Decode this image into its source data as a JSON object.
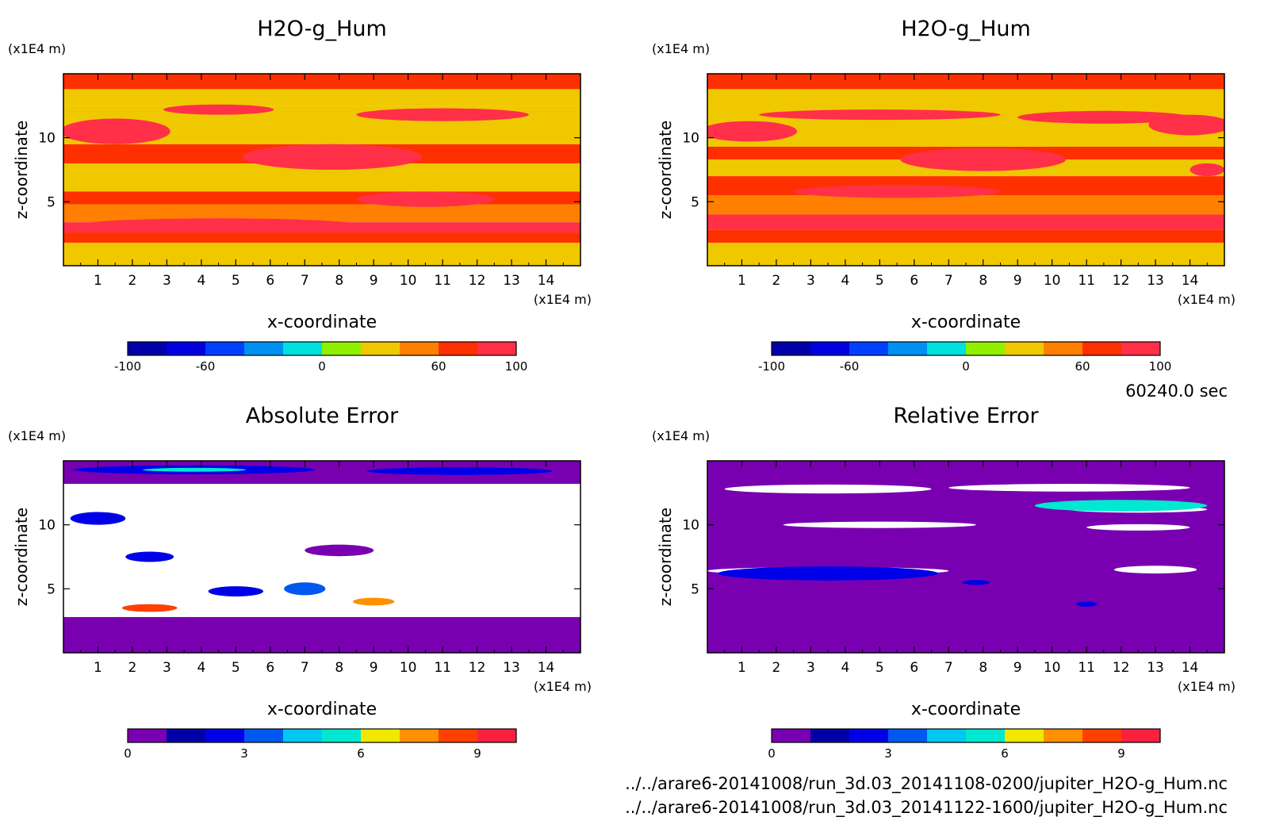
{
  "time_label": "60240.0 sec",
  "files": [
    "../../arare6-20141008/run_3d.03_20141108-0200/jupiter_H2O-g_Hum.nc",
    "../../arare6-20141008/run_3d.03_20141122-1600/jupiter_H2O-g_Hum.nc"
  ],
  "chart_data": [
    {
      "type": "heatmap",
      "title": "H2O-g_Hum",
      "xlabel": "x-coordinate",
      "ylabel": "z-coordinate",
      "x_unit": "(x1E4 m)",
      "y_unit": "(x1E4 m)",
      "x_ticks": [
        1,
        2,
        3,
        4,
        5,
        6,
        7,
        8,
        9,
        10,
        11,
        12,
        13,
        14
      ],
      "y_ticks": [
        5,
        10
      ],
      "xlim": [
        0,
        15
      ],
      "ylim": [
        0,
        15
      ],
      "colorbar": {
        "levels": [
          -100,
          -80,
          -60,
          -40,
          -20,
          0,
          20,
          40,
          60,
          80,
          100
        ],
        "tick_labels": [
          "-100",
          "-60",
          "0",
          "60",
          "100"
        ],
        "tick_values": [
          -100,
          -60,
          0,
          60,
          100
        ],
        "colors": [
          "#0000a8",
          "#0000e0",
          "#0040ff",
          "#0090f0",
          "#00e0e0",
          "#90f000",
          "#f0c800",
          "#ff8000",
          "#ff3000",
          "#ff3048"
        ]
      },
      "bands": [
        {
          "z": [
            0,
            1.8
          ],
          "value": 30
        },
        {
          "z": [
            1.8,
            2.6
          ],
          "value": 70
        },
        {
          "z": [
            2.6,
            3.4
          ],
          "value": 90
        },
        {
          "z": [
            3.4,
            4.8
          ],
          "value": 50
        },
        {
          "z": [
            4.8,
            5.8
          ],
          "value": 70
        },
        {
          "z": [
            5.8,
            8.0
          ],
          "value": 30
        },
        {
          "z": [
            8.0,
            9.5
          ],
          "value": 70
        },
        {
          "z": [
            9.5,
            12.5
          ],
          "value": 30
        },
        {
          "z": [
            12.5,
            13.8
          ],
          "value": 30
        },
        {
          "z": [
            13.8,
            15
          ],
          "value": 70
        }
      ],
      "features": [
        {
          "x": 7.8,
          "z": 8.5,
          "rx": 2.6,
          "rz": 1.0,
          "value": 90
        },
        {
          "x": 7.8,
          "z": 8.7,
          "rx": 0.9,
          "rz": 0.4,
          "value": 100
        },
        {
          "x": 1.5,
          "z": 10.5,
          "rx": 1.6,
          "rz": 1.0,
          "value": 90
        },
        {
          "x": 1.5,
          "z": 10.6,
          "rx": 0.8,
          "rz": 0.5,
          "value": 100
        },
        {
          "x": 4.5,
          "z": 12.2,
          "rx": 1.6,
          "rz": 0.4,
          "value": 90
        },
        {
          "x": 4.5,
          "z": 12.2,
          "rx": 0.9,
          "rz": 0.25,
          "value": 100
        },
        {
          "x": 11.0,
          "z": 11.8,
          "rx": 2.5,
          "rz": 0.5,
          "value": 90
        },
        {
          "x": 10.5,
          "z": 5.2,
          "rx": 2.0,
          "rz": 0.6,
          "value": 90
        },
        {
          "x": 4.5,
          "z": 3.2,
          "rx": 4.0,
          "rz": 0.5,
          "value": 90
        }
      ]
    },
    {
      "type": "heatmap",
      "title": "H2O-g_Hum",
      "xlabel": "x-coordinate",
      "ylabel": "z-coordinate",
      "x_unit": "(x1E4 m)",
      "y_unit": "(x1E4 m)",
      "x_ticks": [
        1,
        2,
        3,
        4,
        5,
        6,
        7,
        8,
        9,
        10,
        11,
        12,
        13,
        14
      ],
      "y_ticks": [
        5,
        10
      ],
      "xlim": [
        0,
        15
      ],
      "ylim": [
        0,
        15
      ],
      "colorbar": {
        "levels": [
          -100,
          -80,
          -60,
          -40,
          -20,
          0,
          20,
          40,
          60,
          80,
          100
        ],
        "tick_labels": [
          "-100",
          "-60",
          "0",
          "60",
          "100"
        ],
        "tick_values": [
          -100,
          -60,
          0,
          60,
          100
        ],
        "colors": [
          "#0000a8",
          "#0000e0",
          "#0040ff",
          "#0090f0",
          "#00e0e0",
          "#90f000",
          "#f0c800",
          "#ff8000",
          "#ff3000",
          "#ff3048"
        ]
      },
      "bands": [
        {
          "z": [
            0,
            1.8
          ],
          "value": 30
        },
        {
          "z": [
            1.8,
            2.8
          ],
          "value": 70
        },
        {
          "z": [
            2.8,
            4.0
          ],
          "value": 90
        },
        {
          "z": [
            4.0,
            5.5
          ],
          "value": 50
        },
        {
          "z": [
            5.5,
            7.0
          ],
          "value": 70
        },
        {
          "z": [
            7.0,
            8.3
          ],
          "value": 30
        },
        {
          "z": [
            8.3,
            9.3
          ],
          "value": 70
        },
        {
          "z": [
            9.3,
            12.3
          ],
          "value": 30
        },
        {
          "z": [
            12.3,
            13.8
          ],
          "value": 30
        },
        {
          "z": [
            13.8,
            15
          ],
          "value": 70
        }
      ],
      "features": [
        {
          "x": 8.0,
          "z": 8.3,
          "rx": 2.4,
          "rz": 0.9,
          "value": 90
        },
        {
          "x": 8.0,
          "z": 8.5,
          "rx": 0.8,
          "rz": 0.35,
          "value": 100
        },
        {
          "x": 1.2,
          "z": 10.5,
          "rx": 1.4,
          "rz": 0.8,
          "value": 90
        },
        {
          "x": 0.6,
          "z": 10.6,
          "rx": 0.6,
          "rz": 0.4,
          "value": 100
        },
        {
          "x": 5.0,
          "z": 11.8,
          "rx": 3.5,
          "rz": 0.4,
          "value": 90
        },
        {
          "x": 11.5,
          "z": 11.6,
          "rx": 2.5,
          "rz": 0.5,
          "value": 90
        },
        {
          "x": 14.0,
          "z": 11.0,
          "rx": 1.2,
          "rz": 0.8,
          "value": 90
        },
        {
          "x": 14.3,
          "z": 11.2,
          "rx": 0.6,
          "rz": 0.4,
          "value": 100
        },
        {
          "x": 5.5,
          "z": 5.8,
          "rx": 3.0,
          "rz": 0.5,
          "value": 90
        },
        {
          "x": 14.5,
          "z": 7.5,
          "rx": 0.5,
          "rz": 0.5,
          "value": 100
        }
      ]
    },
    {
      "type": "heatmap",
      "title": "Absolute Error",
      "xlabel": "x-coordinate",
      "ylabel": "z-coordinate",
      "x_unit": "(x1E4 m)",
      "y_unit": "(x1E4 m)",
      "x_ticks": [
        1,
        2,
        3,
        4,
        5,
        6,
        7,
        8,
        9,
        10,
        11,
        12,
        13,
        14
      ],
      "y_ticks": [
        5,
        10
      ],
      "xlim": [
        0,
        15
      ],
      "ylim": [
        0,
        15
      ],
      "colorbar": {
        "levels": [
          0,
          1,
          2,
          3,
          4,
          5,
          6,
          7,
          8,
          9,
          10
        ],
        "tick_labels": [
          "0",
          "3",
          "6",
          "9"
        ],
        "tick_values": [
          0,
          3,
          6,
          9
        ],
        "colors": [
          "#7800b0",
          "#0000a8",
          "#0000e8",
          "#0058f0",
          "#00c8f0",
          "#00e8d0",
          "#f0e800",
          "#ff9000",
          "#ff4000",
          "#ff2040"
        ]
      },
      "bands": [
        {
          "z": [
            0,
            2.8
          ],
          "value": 0.5
        },
        {
          "z": [
            2.8,
            13.2
          ],
          "value": 11
        },
        {
          "z": [
            13.2,
            15
          ],
          "value": 0.5
        }
      ],
      "features": [
        {
          "x": 3.8,
          "z": 14.3,
          "rx": 3.5,
          "rz": 0.35,
          "value": 2.5
        },
        {
          "x": 3.8,
          "z": 14.3,
          "rx": 1.5,
          "rz": 0.15,
          "value": 5.5
        },
        {
          "x": 11.5,
          "z": 14.2,
          "rx": 2.7,
          "rz": 0.3,
          "value": 2.5
        },
        {
          "x": 8.0,
          "z": 8.0,
          "rx": 1.0,
          "rz": 0.45,
          "value": 0.5
        },
        {
          "x": 2.5,
          "z": 7.5,
          "rx": 0.7,
          "rz": 0.4,
          "value": 2.5
        },
        {
          "x": 5.0,
          "z": 4.8,
          "rx": 0.8,
          "rz": 0.4,
          "value": 2.5
        },
        {
          "x": 7.0,
          "z": 5.0,
          "rx": 0.6,
          "rz": 0.5,
          "value": 3.5
        },
        {
          "x": 1.0,
          "z": 10.5,
          "rx": 0.8,
          "rz": 0.5,
          "value": 2.5
        },
        {
          "x": 2.5,
          "z": 3.5,
          "rx": 0.8,
          "rz": 0.3,
          "value": 8.5
        },
        {
          "x": 9.0,
          "z": 4.0,
          "rx": 0.6,
          "rz": 0.3,
          "value": 7.5
        }
      ]
    },
    {
      "type": "heatmap",
      "title": "Relative Error",
      "xlabel": "x-coordinate",
      "ylabel": "z-coordinate",
      "x_unit": "(x1E4 m)",
      "y_unit": "(x1E4 m)",
      "x_ticks": [
        1,
        2,
        3,
        4,
        5,
        6,
        7,
        8,
        9,
        10,
        11,
        12,
        13,
        14
      ],
      "y_ticks": [
        5,
        10
      ],
      "xlim": [
        0,
        15
      ],
      "ylim": [
        0,
        15
      ],
      "colorbar": {
        "levels": [
          0,
          1,
          2,
          3,
          4,
          5,
          6,
          7,
          8,
          9,
          10
        ],
        "tick_labels": [
          "0",
          "3",
          "6",
          "9"
        ],
        "tick_values": [
          0,
          3,
          6,
          9
        ],
        "colors": [
          "#7800b0",
          "#0000a8",
          "#0000e8",
          "#0058f0",
          "#00c8f0",
          "#00e8d0",
          "#f0e800",
          "#ff9000",
          "#ff4000",
          "#ff2040"
        ]
      },
      "bands": [
        {
          "z": [
            0,
            15
          ],
          "value": 0.5
        }
      ],
      "features": [
        {
          "x": 3.5,
          "z": 12.8,
          "rx": 3.0,
          "rz": 0.35,
          "value": 11
        },
        {
          "x": 10.5,
          "z": 12.9,
          "rx": 3.5,
          "rz": 0.3,
          "value": 11
        },
        {
          "x": 5.0,
          "z": 10.0,
          "rx": 2.8,
          "rz": 0.25,
          "value": 11
        },
        {
          "x": 12.5,
          "z": 9.8,
          "rx": 1.5,
          "rz": 0.25,
          "value": 11
        },
        {
          "x": 12.5,
          "z": 11.2,
          "rx": 2.0,
          "rz": 0.25,
          "value": 11
        },
        {
          "x": 3.5,
          "z": 6.4,
          "rx": 3.5,
          "rz": 0.3,
          "value": 11
        },
        {
          "x": 3.5,
          "z": 6.2,
          "rx": 3.2,
          "rz": 0.55,
          "value": 2.5
        },
        {
          "x": 13.0,
          "z": 6.5,
          "rx": 1.2,
          "rz": 0.3,
          "value": 11
        },
        {
          "x": 7.8,
          "z": 5.5,
          "rx": 0.4,
          "rz": 0.2,
          "value": 2.5
        },
        {
          "x": 11.0,
          "z": 3.8,
          "rx": 0.3,
          "rz": 0.2,
          "value": 2.5
        },
        {
          "x": 12.0,
          "z": 11.5,
          "rx": 2.5,
          "rz": 0.45,
          "value": 5.5
        }
      ]
    }
  ]
}
